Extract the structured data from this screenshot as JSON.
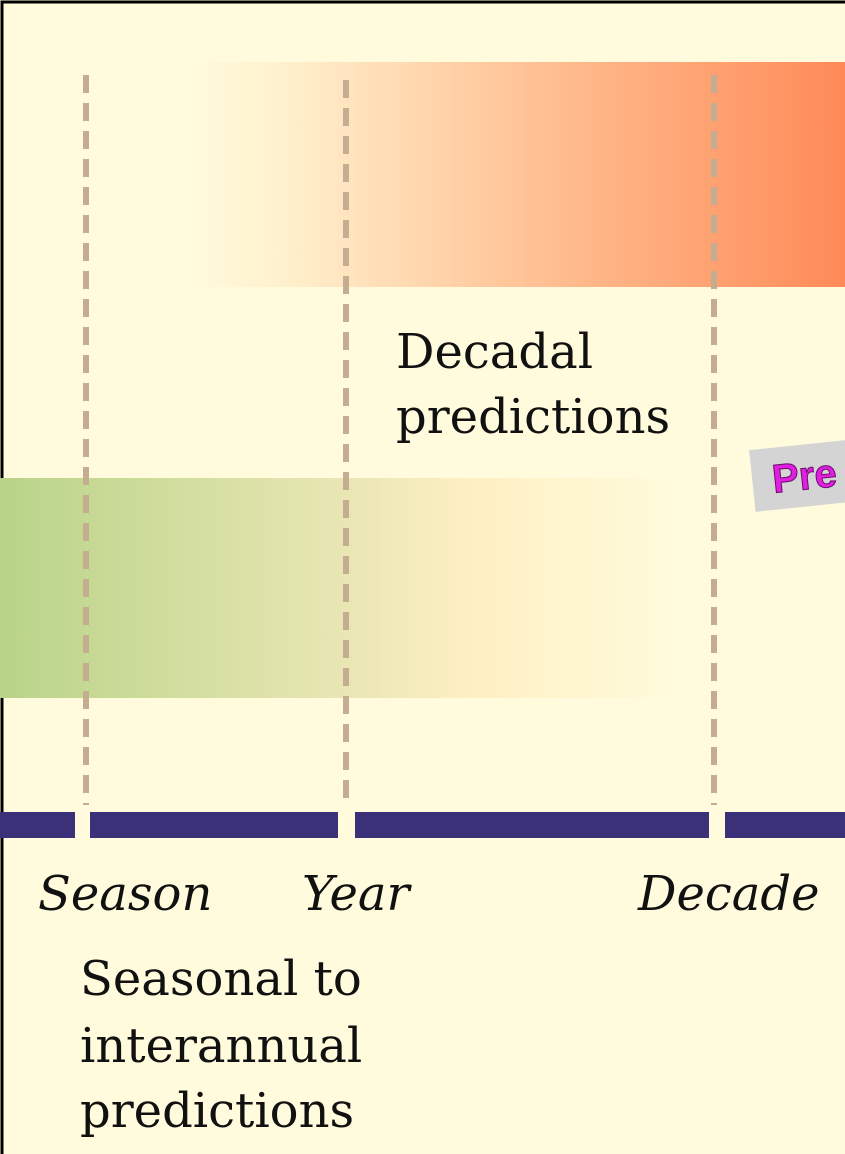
{
  "decadal_label": {
    "lines": [
      "Decadal",
      "predictions"
    ]
  },
  "seasonal_label": {
    "lines": [
      "Seasonal to",
      "interannual",
      "predictions"
    ]
  },
  "timeline": {
    "labels": [
      "Season",
      "Year",
      "Decade"
    ]
  },
  "cropped_box": {
    "text": "Pre"
  }
}
